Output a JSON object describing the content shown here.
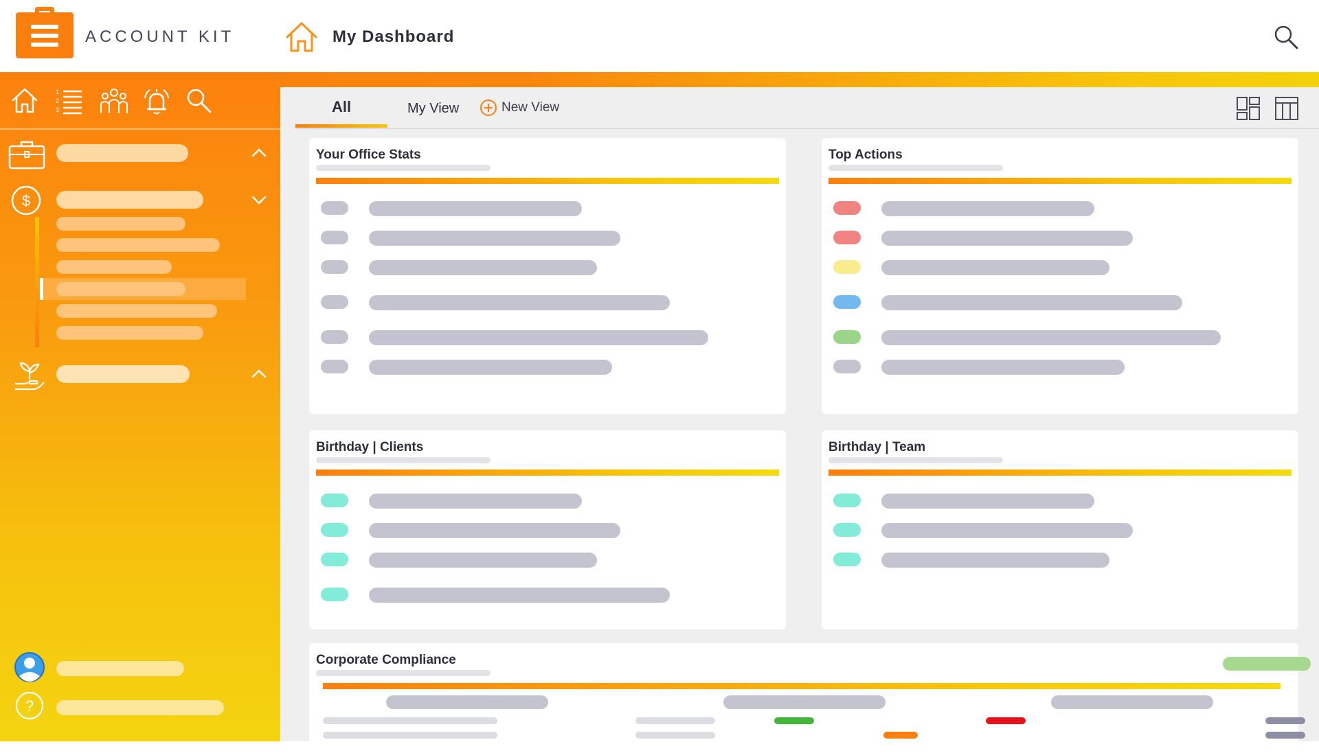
{
  "app": {
    "brand": "ACCOUNT KIT",
    "page_title": "My Dashboard"
  },
  "tabs": [
    {
      "label": "All",
      "active": true
    },
    {
      "label": "My View",
      "active": false
    }
  ],
  "new_view_label": "New View",
  "cards": {
    "office_stats": {
      "title": "Your Office Stats"
    },
    "top_actions": {
      "title": "Top Actions"
    },
    "birthday_clients": {
      "title": "Birthday | Clients"
    },
    "birthday_team": {
      "title": "Birthday | Team"
    },
    "compliance": {
      "title": "Corporate Compliance"
    }
  },
  "colors": {
    "accent": "#fb7f0d",
    "accent_end": "#f4d20a",
    "placeholder": "#c3c4cf",
    "status_red": "#f28383",
    "status_yellow": "#f9ec8d",
    "status_blue": "#72b9f0",
    "status_green": "#9ad58a",
    "birthday_teal": "#82ecd9",
    "compliance_badge": "#a6d98e"
  },
  "icons": {
    "sidebar_nav": [
      "home-icon",
      "numbered-list-icon",
      "people-icon",
      "alarm-bell-icon",
      "search-icon"
    ],
    "sidebar_sections": [
      "briefcase-icon",
      "dollar-circle-icon",
      "plant-hand-icon"
    ],
    "sidebar_footer": [
      "user-avatar-icon",
      "help-icon"
    ],
    "header": [
      "home-icon",
      "search-icon"
    ],
    "layouts": [
      "grid-layout-icon",
      "table-layout-icon"
    ]
  }
}
